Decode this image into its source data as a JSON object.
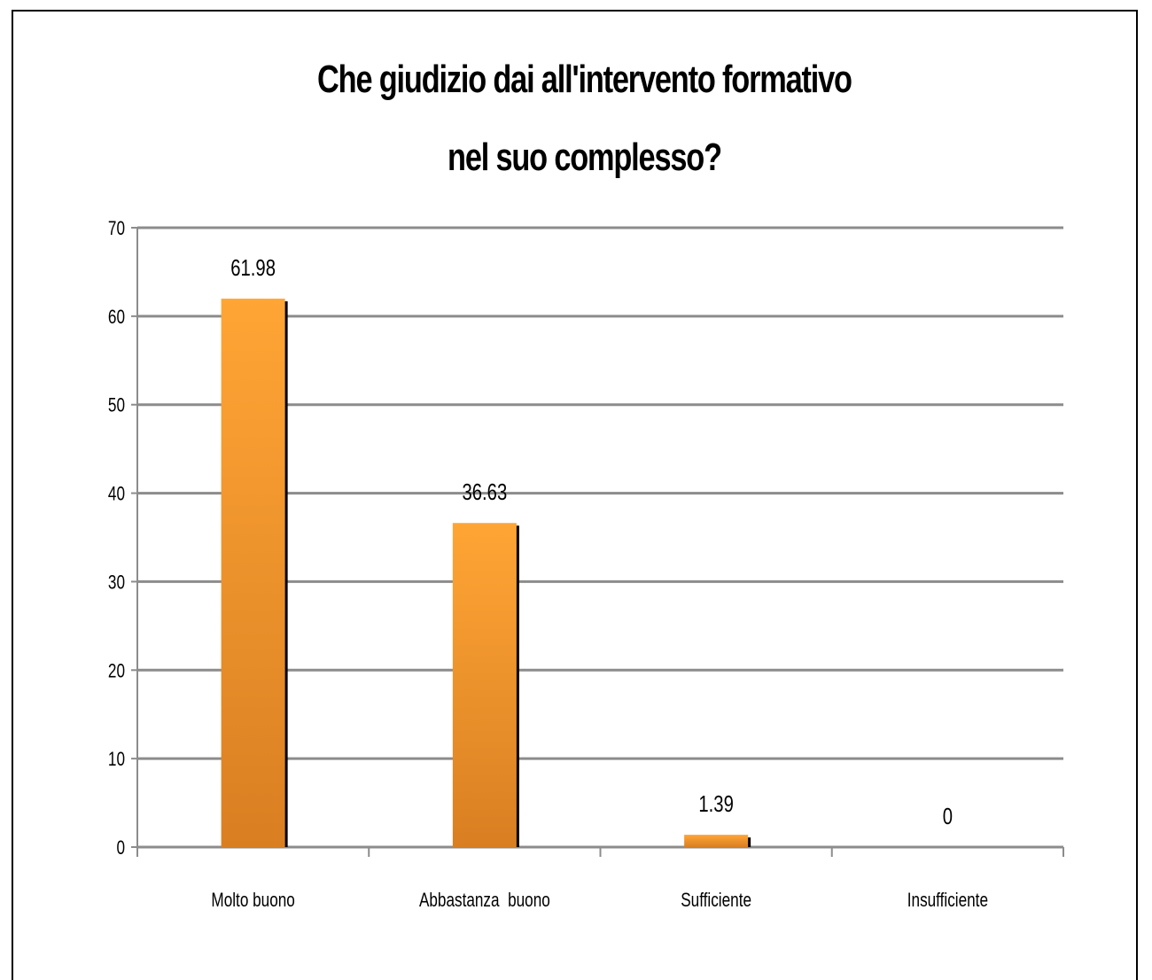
{
  "chart_data": {
    "type": "bar",
    "title": "Che giudizio dai all'intervento formativo nel suo complesso?",
    "title_lines": [
      "Che giudizio dai all'intervento formativo",
      "nel suo complesso?"
    ],
    "categories": [
      "Molto buono",
      "Abbastanza  buono",
      "Sufficiente",
      "Insufficiente"
    ],
    "values": [
      61.98,
      36.63,
      1.39,
      0
    ],
    "data_labels": [
      "61.98",
      "36.63",
      "1.39",
      "0"
    ],
    "xlabel": "",
    "ylabel": "",
    "ylim": [
      0,
      70
    ],
    "yticks": [
      0,
      10,
      20,
      30,
      40,
      50,
      60,
      70
    ],
    "grid": true,
    "legend": "none",
    "colors": {
      "bar_top": "#FFA535",
      "bar_bottom": "#D97F22",
      "bar_shadow": "#000000",
      "gridline": "#8C8C8C",
      "axis": "#8C8C8C",
      "text": "#000000"
    }
  }
}
